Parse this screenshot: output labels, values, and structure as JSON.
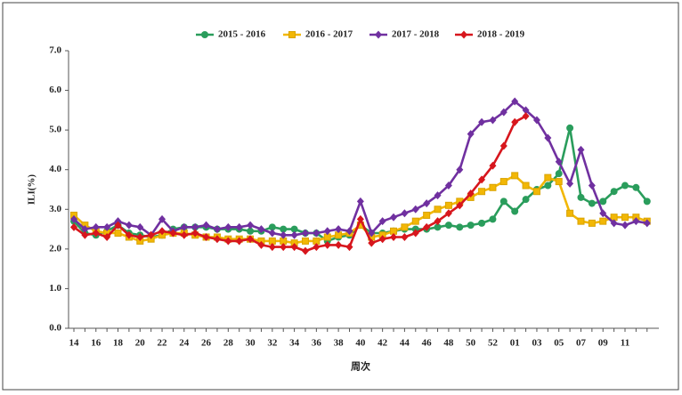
{
  "chart_data": {
    "type": "line",
    "ylabel": "ILI(%)",
    "xlabel": "周次",
    "categories": [
      "14",
      null,
      "16",
      null,
      "18",
      null,
      "20",
      null,
      "22",
      null,
      "24",
      null,
      "26",
      null,
      "28",
      null,
      "30",
      null,
      "32",
      null,
      "34",
      null,
      "36",
      null,
      "38",
      null,
      "40",
      null,
      "42",
      null,
      "44",
      null,
      "46",
      null,
      "48",
      null,
      "50",
      null,
      "52",
      null,
      "01",
      null,
      "03",
      null,
      "05",
      null,
      "07",
      null,
      "09",
      null,
      "11",
      null,
      null
    ],
    "series": [
      {
        "name": "2015 - 2016",
        "color": "#2a9d5c",
        "marker": "circle",
        "values": [
          2.7,
          2.4,
          2.35,
          2.45,
          2.6,
          2.4,
          2.35,
          2.3,
          2.35,
          2.5,
          2.55,
          2.55,
          2.55,
          2.5,
          2.5,
          2.5,
          2.45,
          2.45,
          2.55,
          2.5,
          2.5,
          2.4,
          2.4,
          2.2,
          2.3,
          2.35,
          2.6,
          2.4,
          2.4,
          2.45,
          2.5,
          2.5,
          2.5,
          2.55,
          2.6,
          2.55,
          2.6,
          2.65,
          2.75,
          3.2,
          2.95,
          3.25,
          3.5,
          3.6,
          3.9,
          5.05,
          3.3,
          3.15,
          3.2,
          3.45,
          3.6,
          3.55,
          3.2
        ]
      },
      {
        "name": "2016 - 2017",
        "color": "#f2b705",
        "marker": "square",
        "values": [
          2.85,
          2.6,
          2.45,
          2.4,
          2.4,
          2.3,
          2.2,
          2.25,
          2.35,
          2.4,
          2.4,
          2.35,
          2.3,
          2.3,
          2.25,
          2.25,
          2.25,
          2.2,
          2.2,
          2.2,
          2.15,
          2.2,
          2.2,
          2.3,
          2.35,
          2.4,
          2.6,
          2.3,
          2.35,
          2.45,
          2.55,
          2.7,
          2.85,
          3.0,
          3.1,
          3.2,
          3.3,
          3.45,
          3.55,
          3.7,
          3.85,
          3.6,
          3.45,
          3.8,
          3.7,
          2.9,
          2.7,
          2.65,
          2.7,
          2.8,
          2.8,
          2.8,
          2.7
        ]
      },
      {
        "name": "2017 - 2018",
        "color": "#7030a0",
        "marker": "diamond",
        "values": [
          2.75,
          2.5,
          2.55,
          2.55,
          2.7,
          2.6,
          2.55,
          2.35,
          2.75,
          2.45,
          2.55,
          2.55,
          2.6,
          2.5,
          2.55,
          2.55,
          2.6,
          2.5,
          2.4,
          2.35,
          2.35,
          2.4,
          2.4,
          2.45,
          2.5,
          2.45,
          3.2,
          2.4,
          2.7,
          2.8,
          2.9,
          3.0,
          3.15,
          3.35,
          3.6,
          4.0,
          4.9,
          5.2,
          5.25,
          5.45,
          5.72,
          5.5,
          5.25,
          4.8,
          4.2,
          3.65,
          4.5,
          3.6,
          2.9,
          2.65,
          2.6,
          2.7,
          2.65
        ]
      },
      {
        "name": "2018 - 2019",
        "color": "#d7161d",
        "marker": "diamond",
        "values": [
          2.55,
          2.35,
          2.4,
          2.3,
          2.6,
          2.35,
          2.3,
          2.35,
          2.45,
          2.4,
          2.35,
          2.4,
          2.3,
          2.25,
          2.2,
          2.2,
          2.25,
          2.1,
          2.05,
          2.05,
          2.05,
          1.95,
          2.05,
          2.1,
          2.1,
          2.05,
          2.75,
          2.15,
          2.25,
          2.3,
          2.3,
          2.4,
          2.55,
          2.7,
          2.9,
          3.1,
          3.4,
          3.75,
          4.1,
          4.6,
          5.2,
          5.35,
          null,
          null,
          null,
          null,
          null,
          null,
          null,
          null,
          null,
          null,
          null
        ]
      }
    ],
    "ylim": [
      0,
      7
    ],
    "yticks": [
      {
        "value": 0,
        "label": "0.0"
      },
      {
        "value": 1,
        "label": "1.0"
      },
      {
        "value": 2,
        "label": "2.0"
      },
      {
        "value": 3,
        "label": "3.0"
      },
      {
        "value": 4,
        "label": "4.0"
      },
      {
        "value": 5,
        "label": "5.0"
      },
      {
        "value": 6,
        "label": "6.0"
      },
      {
        "value": 7,
        "label": "7.0"
      }
    ],
    "legend": "top"
  }
}
